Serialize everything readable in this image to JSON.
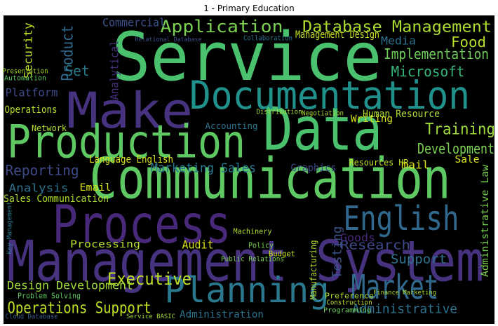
{
  "chart_data": {
    "type": "wordcloud",
    "title": "1 - Primary Education",
    "categories": [
      "Service",
      "Data",
      "Communication",
      "Management System",
      "Process",
      "Make",
      "Production",
      "Documentation",
      "Planning",
      "Market",
      "English",
      "Database Management",
      "Application",
      "Executive",
      "Operations Support",
      "Design Development",
      "Reporting",
      "Analysis",
      "Sales Communication",
      "Training",
      "Development",
      "Implementation",
      "Microsoft",
      "Human Resource",
      "Food",
      "Media",
      "Management Design",
      "Marketing Sales",
      "Language English",
      "Commercial",
      "Product",
      "Set",
      "Platform",
      "Operations",
      "Network",
      "Email",
      "Audit",
      "Processing",
      "Research",
      "Support",
      "Administrative",
      "Administration",
      "Administrative Law",
      "Testing",
      "Goods",
      "Graphics",
      "Resources HR",
      "mail",
      "Sale",
      "Writing",
      "Accounting",
      "Analytical",
      "Security",
      "Problem Solving",
      "Cloud Database",
      "Preference",
      "Construction",
      "Programming",
      "Manufacturing",
      "Finance Marketing",
      "Presentation",
      "Automation",
      "Service BASIC",
      "Public Relations",
      "Collaboration",
      "Relational Database",
      "Key Management",
      "Machinery",
      "Budget",
      "Policy",
      "Distribution",
      "Negotiation"
    ],
    "values": [
      95,
      85,
      80,
      80,
      75,
      70,
      65,
      55,
      50,
      48,
      48,
      22,
      24,
      24,
      22,
      16,
      20,
      16,
      14,
      22,
      20,
      20,
      20,
      14,
      20,
      16,
      14,
      18,
      14,
      16,
      22,
      20,
      16,
      14,
      12,
      14,
      16,
      14,
      18,
      18,
      18,
      14,
      14,
      18,
      16,
      14,
      12,
      16,
      14,
      14,
      12,
      16,
      16,
      11,
      10,
      11,
      10,
      10,
      12,
      9,
      10,
      10,
      9,
      10,
      10,
      9,
      10,
      11,
      11,
      11,
      10,
      10
    ],
    "colors": [
      "#4ac16d",
      "#4ac16d",
      "#5ec962",
      "#46327e",
      "#482878",
      "#46327e",
      "#5ec962",
      "#21918c",
      "#2a788e",
      "#31688e",
      "#31688e",
      "#addc30",
      "#7ad151",
      "#bddf26",
      "#c2df23",
      "#a0da39",
      "#3e4a89",
      "#2c728e",
      "#addc30",
      "#a0da39",
      "#7ad151",
      "#6ece58",
      "#35b779",
      "#addc30",
      "#b5de2b",
      "#2c728e",
      "#c8e020",
      "#2a788e",
      "#d8e219",
      "#3b528b",
      "#31688e",
      "#2a788e",
      "#3e4a89",
      "#b5de2b",
      "#b5de2b",
      "#d8e219",
      "#d8e219",
      "#b5de2b",
      "#3e4a89",
      "#2c728e",
      "#2c728e",
      "#2c728e",
      "#7ad151",
      "#3b528b",
      "#482878",
      "#3e4a89",
      "#c8e020",
      "#d8e219",
      "#d8e219",
      "#d8e219",
      "#2c728e",
      "#46327e",
      "#c2df23",
      "#5ec962",
      "#38598c",
      "#addc30",
      "#c2df23",
      "#6ece58",
      "#b5de2b",
      "#addc30",
      "#addc30",
      "#5ec962",
      "#a0da39",
      "#7ad151",
      "#2c728e",
      "#3e4a89",
      "#2a788e",
      "#addc30",
      "#c8e020",
      "#7ad151",
      "#a0da39",
      "#addc30"
    ]
  }
}
